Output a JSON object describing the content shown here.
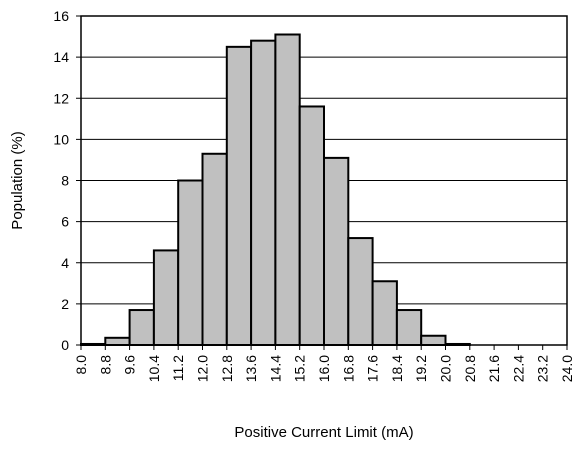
{
  "chart_data": {
    "type": "bar",
    "title": "",
    "xlabel": "Positive Current Limit (mA)",
    "ylabel": "Population (%)",
    "ylim": [
      0,
      16
    ],
    "yticks": [
      "0",
      "2",
      "4",
      "6",
      "8",
      "10",
      "12",
      "14",
      "16"
    ],
    "xticks": [
      "8.0",
      "8.8",
      "9.6",
      "10.4",
      "11.2",
      "12.0",
      "12.8",
      "13.6",
      "14.4",
      "15.2",
      "16.0",
      "16.8",
      "17.6",
      "18.4",
      "19.2",
      "20.0",
      "20.8",
      "21.6",
      "22.4",
      "23.2",
      "24.0"
    ],
    "xlim": [
      8.0,
      24.0
    ],
    "bin_edges": [
      8.0,
      8.8,
      9.6,
      10.4,
      11.2,
      12.0,
      12.8,
      13.6,
      14.4,
      15.2,
      16.0,
      16.8,
      17.6,
      18.4,
      19.2,
      20.0,
      20.8
    ],
    "values": [
      0.05,
      0.35,
      1.7,
      4.6,
      8.0,
      9.3,
      14.5,
      14.8,
      15.1,
      11.6,
      9.1,
      5.2,
      3.1,
      1.7,
      0.45,
      0.05
    ],
    "grid": true,
    "bar_color": "#c0c0c0",
    "edge_color": "#000000"
  }
}
